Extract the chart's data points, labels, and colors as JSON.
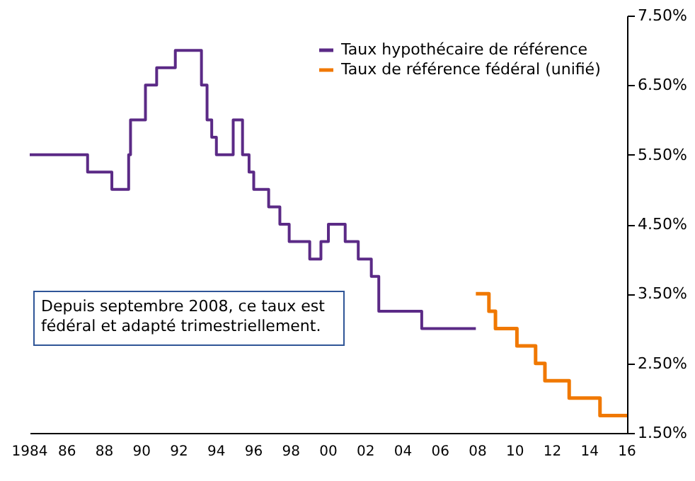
{
  "chart_data": {
    "type": "step",
    "xlim": [
      1984,
      2016
    ],
    "xticks": [
      1984,
      {
        "value": 1986,
        "label": "86"
      },
      {
        "value": 1988,
        "label": "88"
      },
      {
        "value": 1990,
        "label": "90"
      },
      {
        "value": 1992,
        "label": "92"
      },
      {
        "value": 1994,
        "label": "94"
      },
      {
        "value": 1996,
        "label": "96"
      },
      {
        "value": 1998,
        "label": "98"
      },
      {
        "value": 2000,
        "label": "00"
      },
      {
        "value": 2002,
        "label": "02"
      },
      {
        "value": 2004,
        "label": "04"
      },
      {
        "value": 2006,
        "label": "06"
      },
      {
        "value": 2008,
        "label": "08"
      },
      {
        "value": 2010,
        "label": "10"
      },
      {
        "value": 2012,
        "label": "12"
      },
      {
        "value": 2014,
        "label": "14"
      },
      {
        "value": 2016,
        "label": "16"
      }
    ],
    "ylim": [
      1.5,
      7.5
    ],
    "yticks": [
      {
        "value": 1.5,
        "label": "1.50%"
      },
      {
        "value": 2.5,
        "label": "2.50%"
      },
      {
        "value": 3.5,
        "label": "3.50%"
      },
      {
        "value": 4.5,
        "label": "4.50%"
      },
      {
        "value": 5.5,
        "label": "5.50%"
      },
      {
        "value": 6.5,
        "label": "6.50%"
      },
      {
        "value": 7.5,
        "label": "7.50%"
      }
    ],
    "series": [
      {
        "name": "Taux hypothécaire de référence",
        "color": "#5b2a86",
        "x": [
          1984.0,
          1987.1,
          1988.4,
          1989.3,
          1989.4,
          1990.2,
          1990.8,
          1991.8,
          1993.2,
          1993.5,
          1993.75,
          1994.0,
          1994.9,
          1995.4,
          1995.75,
          1996.0,
          1996.8,
          1997.4,
          1997.9,
          1999.0,
          1999.6,
          2000.0,
          2000.9,
          2001.6,
          2002.3,
          2002.7,
          2005.0,
          2007.9
        ],
        "values": [
          5.5,
          5.25,
          5.0,
          5.5,
          6.0,
          6.5,
          6.75,
          7.0,
          6.5,
          6.0,
          5.75,
          5.5,
          6.0,
          5.5,
          5.25,
          5.0,
          4.75,
          4.5,
          4.25,
          4.0,
          4.25,
          4.5,
          4.25,
          4.0,
          3.75,
          3.25,
          3.0,
          3.0
        ]
      },
      {
        "name": "Taux de référence fédéral (unifié)",
        "color": "#f07800",
        "x": [
          2007.9,
          2008.6,
          2008.95,
          2010.1,
          2011.1,
          2011.6,
          2012.9,
          2014.55,
          2016.0
        ],
        "values": [
          3.5,
          3.25,
          3.0,
          2.75,
          2.5,
          2.25,
          2.0,
          1.75,
          1.75
        ]
      }
    ],
    "annotations": [
      "Depuis septembre 2008, ce taux est fédéral et adapté trimestriellement."
    ],
    "grid": false,
    "legend": "top right",
    "line_style": "solid"
  }
}
